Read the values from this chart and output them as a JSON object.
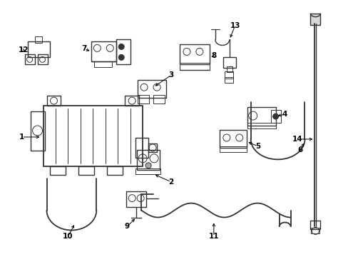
{
  "bg_color": "#ffffff",
  "line_color": "#333333",
  "text_color": "#000000",
  "figsize": [
    4.89,
    3.6
  ],
  "dpi": 100
}
